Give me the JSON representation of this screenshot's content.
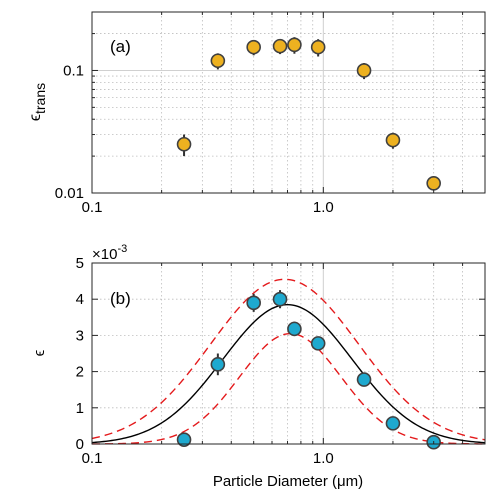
{
  "chart_data": [
    {
      "type": "scatter",
      "panel_label": "(a)",
      "ylabel_main": "ϵ",
      "ylabel_sub": "trans",
      "xscale": "log",
      "yscale": "log",
      "xlim": [
        0.1,
        5
      ],
      "ylim": [
        0.01,
        0.3
      ],
      "xticks": [
        0.1,
        1.0
      ],
      "xtick_labels": [
        "0.1",
        "1.0"
      ],
      "yticks": [
        0.01,
        0.1
      ],
      "ytick_labels": [
        "0.01",
        "0.1"
      ],
      "grid": true,
      "marker_color": "#EDB120",
      "points": [
        {
          "x": 0.25,
          "y": 0.025,
          "err": 0.005
        },
        {
          "x": 0.35,
          "y": 0.12,
          "err": 0.018
        },
        {
          "x": 0.5,
          "y": 0.155,
          "err": 0.022
        },
        {
          "x": 0.65,
          "y": 0.158,
          "err": 0.022
        },
        {
          "x": 0.75,
          "y": 0.162,
          "err": 0.025
        },
        {
          "x": 0.95,
          "y": 0.155,
          "err": 0.025
        },
        {
          "x": 1.5,
          "y": 0.1,
          "err": 0.015
        },
        {
          "x": 2.0,
          "y": 0.027,
          "err": 0.004
        },
        {
          "x": 3.0,
          "y": 0.012,
          "err": 0.0015
        }
      ]
    },
    {
      "type": "scatter",
      "panel_label": "(b)",
      "ylabel": "ϵ",
      "xlabel": "Particle Diameter (μm)",
      "exponent_label": "×10",
      "exponent_power": "-3",
      "xscale": "log",
      "xlim": [
        0.1,
        5
      ],
      "ylim": [
        0,
        5
      ],
      "xticks": [
        0.1,
        1.0
      ],
      "xtick_labels": [
        "0.1",
        "1.0"
      ],
      "yticks": [
        0,
        1,
        2,
        3,
        4,
        5
      ],
      "ytick_labels": [
        "0",
        "1",
        "2",
        "3",
        "4",
        "5"
      ],
      "grid": true,
      "marker_color": "#1EA9CF",
      "points": [
        {
          "x": 0.25,
          "y": 0.12,
          "err": 0.05
        },
        {
          "x": 0.35,
          "y": 2.2,
          "err": 0.3
        },
        {
          "x": 0.5,
          "y": 3.9,
          "err": 0.25
        },
        {
          "x": 0.65,
          "y": 4.0,
          "err": 0.25
        },
        {
          "x": 0.75,
          "y": 3.18,
          "err": 0.2
        },
        {
          "x": 0.95,
          "y": 2.78,
          "err": 0.15
        },
        {
          "x": 1.5,
          "y": 1.78,
          "err": 0.08
        },
        {
          "x": 2.0,
          "y": 0.57,
          "err": 0.05
        },
        {
          "x": 3.0,
          "y": 0.05,
          "err": 0.02
        }
      ],
      "curves": [
        {
          "style": "solid",
          "color": "#000000",
          "amplitude": 3.85,
          "center": 0.7,
          "log10_width": 0.28
        },
        {
          "style": "dashed",
          "color": "#E41A1C",
          "amplitude": 4.55,
          "center": 0.68,
          "log10_width": 0.32
        },
        {
          "style": "dashed",
          "color": "#E41A1C",
          "amplitude": 3.05,
          "center": 0.72,
          "log10_width": 0.22
        }
      ]
    }
  ]
}
